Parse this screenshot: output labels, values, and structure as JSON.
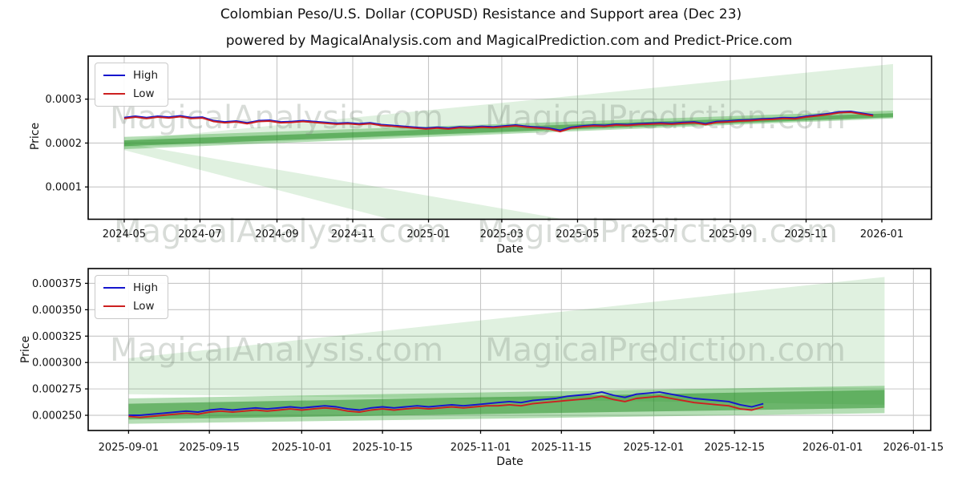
{
  "title": "Colombian Peso/U.S. Dollar (COPUSD) Resistance and Support area (Dec 23)",
  "subtitle": "powered by MagicalAnalysis.com and MagicalPrediction.com and Predict-Price.com",
  "watermarks": {
    "left": "MagicalAnalysis.com",
    "right": "MagicalPrediction.com"
  },
  "colors": {
    "high_line": "#1515cd",
    "low_line": "#cc2020",
    "band_pale": "rgba(44,160,44,0.15)",
    "band_medium": "rgba(44,160,44,0.35)",
    "band_dark": "rgba(34,139,34,0.5)",
    "grid": "#c6c6c6",
    "spine": "#000000",
    "watermark": "rgba(125,138,125,0.30)"
  },
  "chart_data": [
    {
      "type": "line",
      "ylabel": "Price",
      "xlabel": "Date",
      "values_scale": 1e-06,
      "x_range": [
        "2024-04-02",
        "2026-02-10"
      ],
      "y_range_e6": [
        26.4,
        398
      ],
      "x_ticks": {
        "dates": [
          "2024-05-01",
          "2024-07-01",
          "2024-09-01",
          "2024-11-01",
          "2025-01-01",
          "2025-03-01",
          "2025-05-01",
          "2025-07-01",
          "2025-09-01",
          "2025-11-01",
          "2026-01-01"
        ],
        "labels": [
          "2024-05",
          "2024-07",
          "2024-09",
          "2024-11",
          "2025-01",
          "2025-03",
          "2025-05",
          "2025-07",
          "2025-09",
          "2025-11",
          "2026-01"
        ]
      },
      "y_ticks": {
        "values_e6": [
          100,
          200,
          300
        ],
        "labels": [
          "0.0001",
          "0.0002",
          "0.0003"
        ]
      },
      "legend": [
        "High",
        "Low"
      ],
      "bands": [
        {
          "name": "support-area-pale",
          "color_key": "band_pale",
          "points_e6": [
            [
              "2024-05-01",
              200
            ],
            [
              "2025-04-20",
              26.4
            ],
            [
              "2024-12-01",
              26.4
            ],
            [
              "2024-05-01",
              184
            ]
          ]
        },
        {
          "name": "resistance-area-pale",
          "color_key": "band_pale",
          "points_e6": [
            [
              "2024-05-01",
              206
            ],
            [
              "2026-01-10",
              380
            ],
            [
              "2026-01-10",
              258
            ],
            [
              "2024-05-01",
              190
            ]
          ]
        },
        {
          "name": "mid-band-medium",
          "color_key": "band_medium",
          "points_e6": [
            [
              "2024-05-01",
              214
            ],
            [
              "2026-01-10",
              274
            ],
            [
              "2026-01-10",
              256
            ],
            [
              "2024-05-01",
              186
            ]
          ]
        },
        {
          "name": "mid-band-dark",
          "color_key": "band_dark",
          "points_e6": [
            [
              "2024-05-01",
              206
            ],
            [
              "2026-01-10",
              268
            ],
            [
              "2026-01-10",
              259
            ],
            [
              "2024-05-01",
              193
            ]
          ]
        }
      ],
      "series": [
        {
          "name": "High",
          "color_key": "high_line",
          "start": "2024-05-01",
          "step_days": 9,
          "values_e6": [
            258,
            261,
            258,
            261,
            259,
            262,
            258,
            259,
            251,
            248,
            250,
            246,
            251,
            252,
            248,
            249,
            251,
            249,
            247,
            245,
            246,
            244,
            246,
            242,
            240,
            238,
            236,
            234,
            236,
            234,
            237,
            236,
            238,
            237,
            239,
            241,
            238,
            236,
            234,
            229,
            236,
            239,
            241,
            240,
            243,
            242,
            244,
            245,
            246,
            245,
            247,
            248,
            244,
            249,
            250,
            252,
            253,
            255,
            256,
            258,
            257,
            261,
            264,
            267,
            271,
            272,
            268,
            264
          ]
        },
        {
          "name": "Low",
          "color_key": "low_line",
          "start": "2024-05-01",
          "step_days": 9,
          "values_e6": [
            256,
            259,
            256,
            259,
            257,
            260,
            256,
            257,
            249,
            246,
            248,
            244,
            249,
            250,
            246,
            247,
            249,
            247,
            245,
            243,
            244,
            242,
            244,
            240,
            238,
            236,
            234,
            232,
            234,
            232,
            235,
            234,
            236,
            235,
            237,
            239,
            236,
            234,
            232,
            226,
            234,
            237,
            239,
            238,
            241,
            240,
            242,
            243,
            244,
            243,
            245,
            246,
            242,
            247,
            248,
            250,
            251,
            253,
            254,
            256,
            255,
            259,
            262,
            265,
            269,
            270,
            266,
            262
          ]
        }
      ]
    },
    {
      "type": "line",
      "ylabel": "Price",
      "xlabel": "Date",
      "values_scale": 1e-06,
      "x_range": [
        "2025-08-25",
        "2026-01-18"
      ],
      "y_range_e6": [
        235.6,
        389
      ],
      "x_ticks": {
        "dates": [
          "2025-09-01",
          "2025-09-15",
          "2025-10-01",
          "2025-10-15",
          "2025-11-01",
          "2025-11-15",
          "2025-12-01",
          "2025-12-15",
          "2026-01-01",
          "2026-01-15"
        ],
        "labels": [
          "2025-09-01",
          "2025-09-15",
          "2025-10-01",
          "2025-10-15",
          "2025-11-01",
          "2025-11-15",
          "2025-12-01",
          "2025-12-15",
          "2026-01-01",
          "2026-01-15"
        ]
      },
      "y_ticks": {
        "values_e6": [
          250,
          275,
          300,
          325,
          350,
          375
        ],
        "labels": [
          "0.000250",
          "0.000275",
          "0.000300",
          "0.000325",
          "0.000350",
          "0.000375"
        ]
      },
      "legend": [
        "High",
        "Low"
      ],
      "bands": [
        {
          "name": "resistance-area-pale",
          "color_key": "band_pale",
          "points_e6": [
            [
              "2025-09-01",
              304
            ],
            [
              "2026-01-10",
              381
            ],
            [
              "2026-01-10",
              260
            ],
            [
              "2025-09-01",
              270
            ]
          ]
        },
        {
          "name": "mid-band-medium",
          "color_key": "band_medium",
          "points_e6": [
            [
              "2025-09-01",
              266
            ],
            [
              "2026-01-10",
              278
            ],
            [
              "2026-01-10",
              252
            ],
            [
              "2025-09-01",
              242
            ]
          ]
        },
        {
          "name": "mid-band-dark",
          "color_key": "band_dark",
          "points_e6": [
            [
              "2025-09-01",
              261
            ],
            [
              "2026-01-10",
              274
            ],
            [
              "2026-01-10",
              257
            ],
            [
              "2025-09-01",
              246
            ]
          ]
        }
      ],
      "series": [
        {
          "name": "High",
          "color_key": "high_line",
          "start": "2025-09-01",
          "step_days": 2,
          "values_e6": [
            250,
            250,
            251,
            252,
            253,
            254,
            253,
            255,
            256,
            255,
            256,
            257,
            256,
            257,
            258,
            257,
            258,
            259,
            258,
            256,
            255,
            257,
            258,
            257,
            258,
            259,
            258,
            259,
            260,
            259,
            260,
            261,
            262,
            263,
            262,
            264,
            265,
            266,
            268,
            269,
            270,
            272,
            269,
            267,
            270,
            271,
            272,
            270,
            268,
            266,
            265,
            264,
            263,
            260,
            258,
            261
          ]
        },
        {
          "name": "Low",
          "color_key": "low_line",
          "start": "2025-09-01",
          "step_days": 2,
          "values_e6": [
            249,
            248,
            249,
            250,
            251,
            252,
            251,
            253,
            254,
            253,
            254,
            255,
            254,
            255,
            256,
            255,
            256,
            257,
            256,
            254,
            253,
            255,
            256,
            255,
            256,
            257,
            256,
            257,
            258,
            257,
            258,
            259,
            259,
            260,
            259,
            261,
            262,
            263,
            264,
            265,
            266,
            268,
            265,
            263,
            266,
            267,
            268,
            266,
            264,
            262,
            261,
            260,
            259,
            256,
            255,
            258
          ]
        }
      ]
    }
  ]
}
